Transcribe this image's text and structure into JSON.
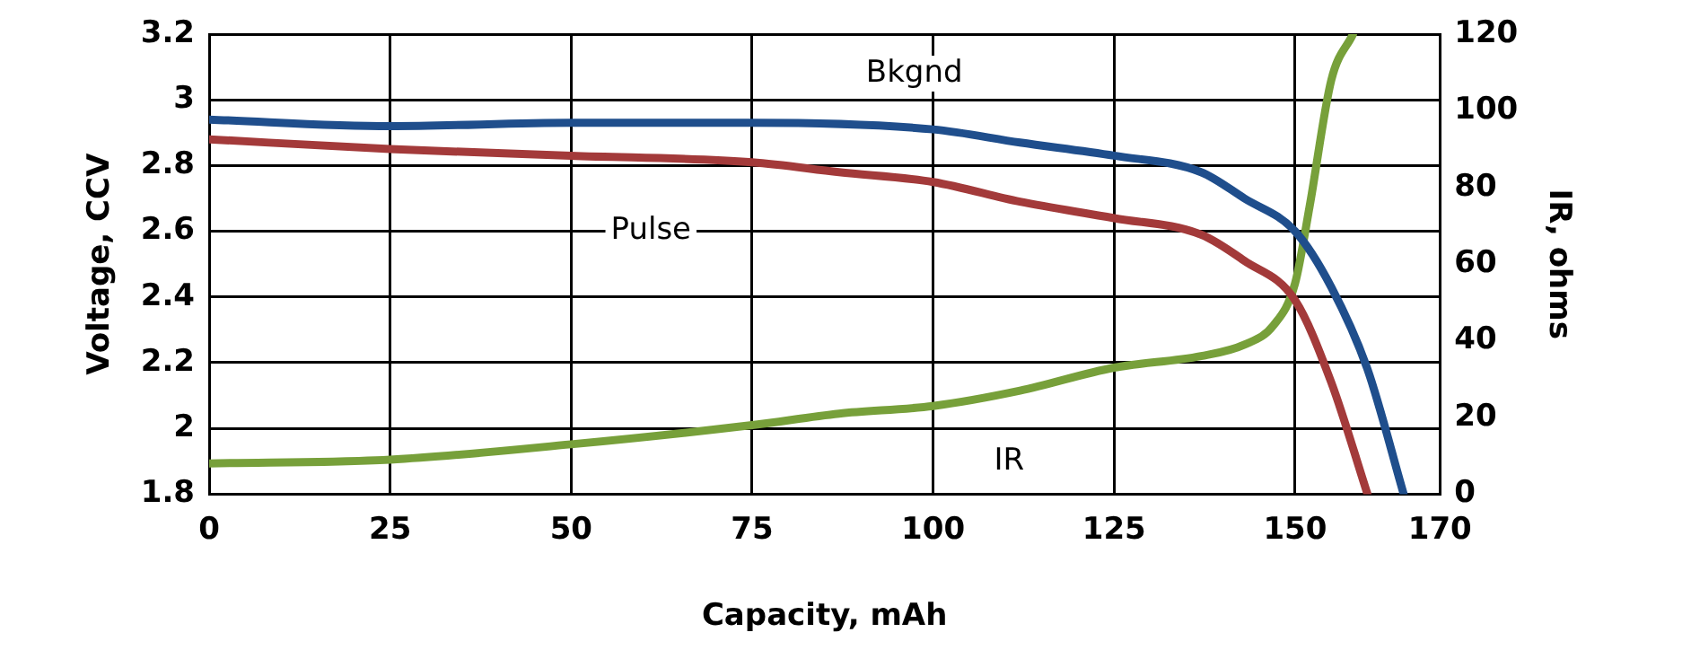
{
  "chart_data": {
    "type": "line",
    "xlabel": "Capacity, mAh",
    "ylabel": "Voltage, CCV",
    "y2label": "IR, ohms",
    "xlim": [
      0,
      170
    ],
    "xticks": [
      0,
      25,
      50,
      75,
      100,
      125,
      150,
      170
    ],
    "ylim": [
      1.8,
      3.2
    ],
    "yticks": [
      1.8,
      2.0,
      2.2,
      2.4,
      2.6,
      2.8,
      3.0,
      3.2
    ],
    "y2lim": [
      0,
      120
    ],
    "y2ticks": [
      0,
      20,
      40,
      60,
      80,
      100,
      120
    ],
    "grid": true,
    "legend": false,
    "marker": "none",
    "line_style": "solid",
    "series": [
      {
        "name": "Bkgnd",
        "color": "#1f4e8c",
        "x": [
          0,
          25,
          50,
          75,
          100,
          112,
          125,
          137,
          143,
          150,
          155,
          160,
          165
        ],
        "values": [
          2.94,
          2.92,
          2.93,
          2.93,
          2.91,
          2.87,
          2.83,
          2.78,
          2.7,
          2.6,
          2.43,
          2.18,
          1.8
        ]
      },
      {
        "name": "Pulse",
        "color": "#a33a3a",
        "x": [
          0,
          25,
          50,
          75,
          87,
          100,
          112,
          125,
          137,
          143,
          150,
          155,
          160
        ],
        "values": [
          2.88,
          2.85,
          2.83,
          2.81,
          2.78,
          2.75,
          2.69,
          2.64,
          2.59,
          2.51,
          2.39,
          2.14,
          1.8
        ]
      },
      {
        "name": "IR",
        "color": "#77a03a",
        "axis": "y2",
        "x": [
          0,
          25,
          50,
          75,
          87,
          100,
          112,
          125,
          137,
          143,
          147,
          150,
          152,
          155,
          158
        ],
        "values": [
          8,
          9,
          13,
          18,
          21,
          23,
          27,
          33,
          36,
          39,
          44,
          55,
          75,
          108,
          120
        ]
      }
    ]
  }
}
